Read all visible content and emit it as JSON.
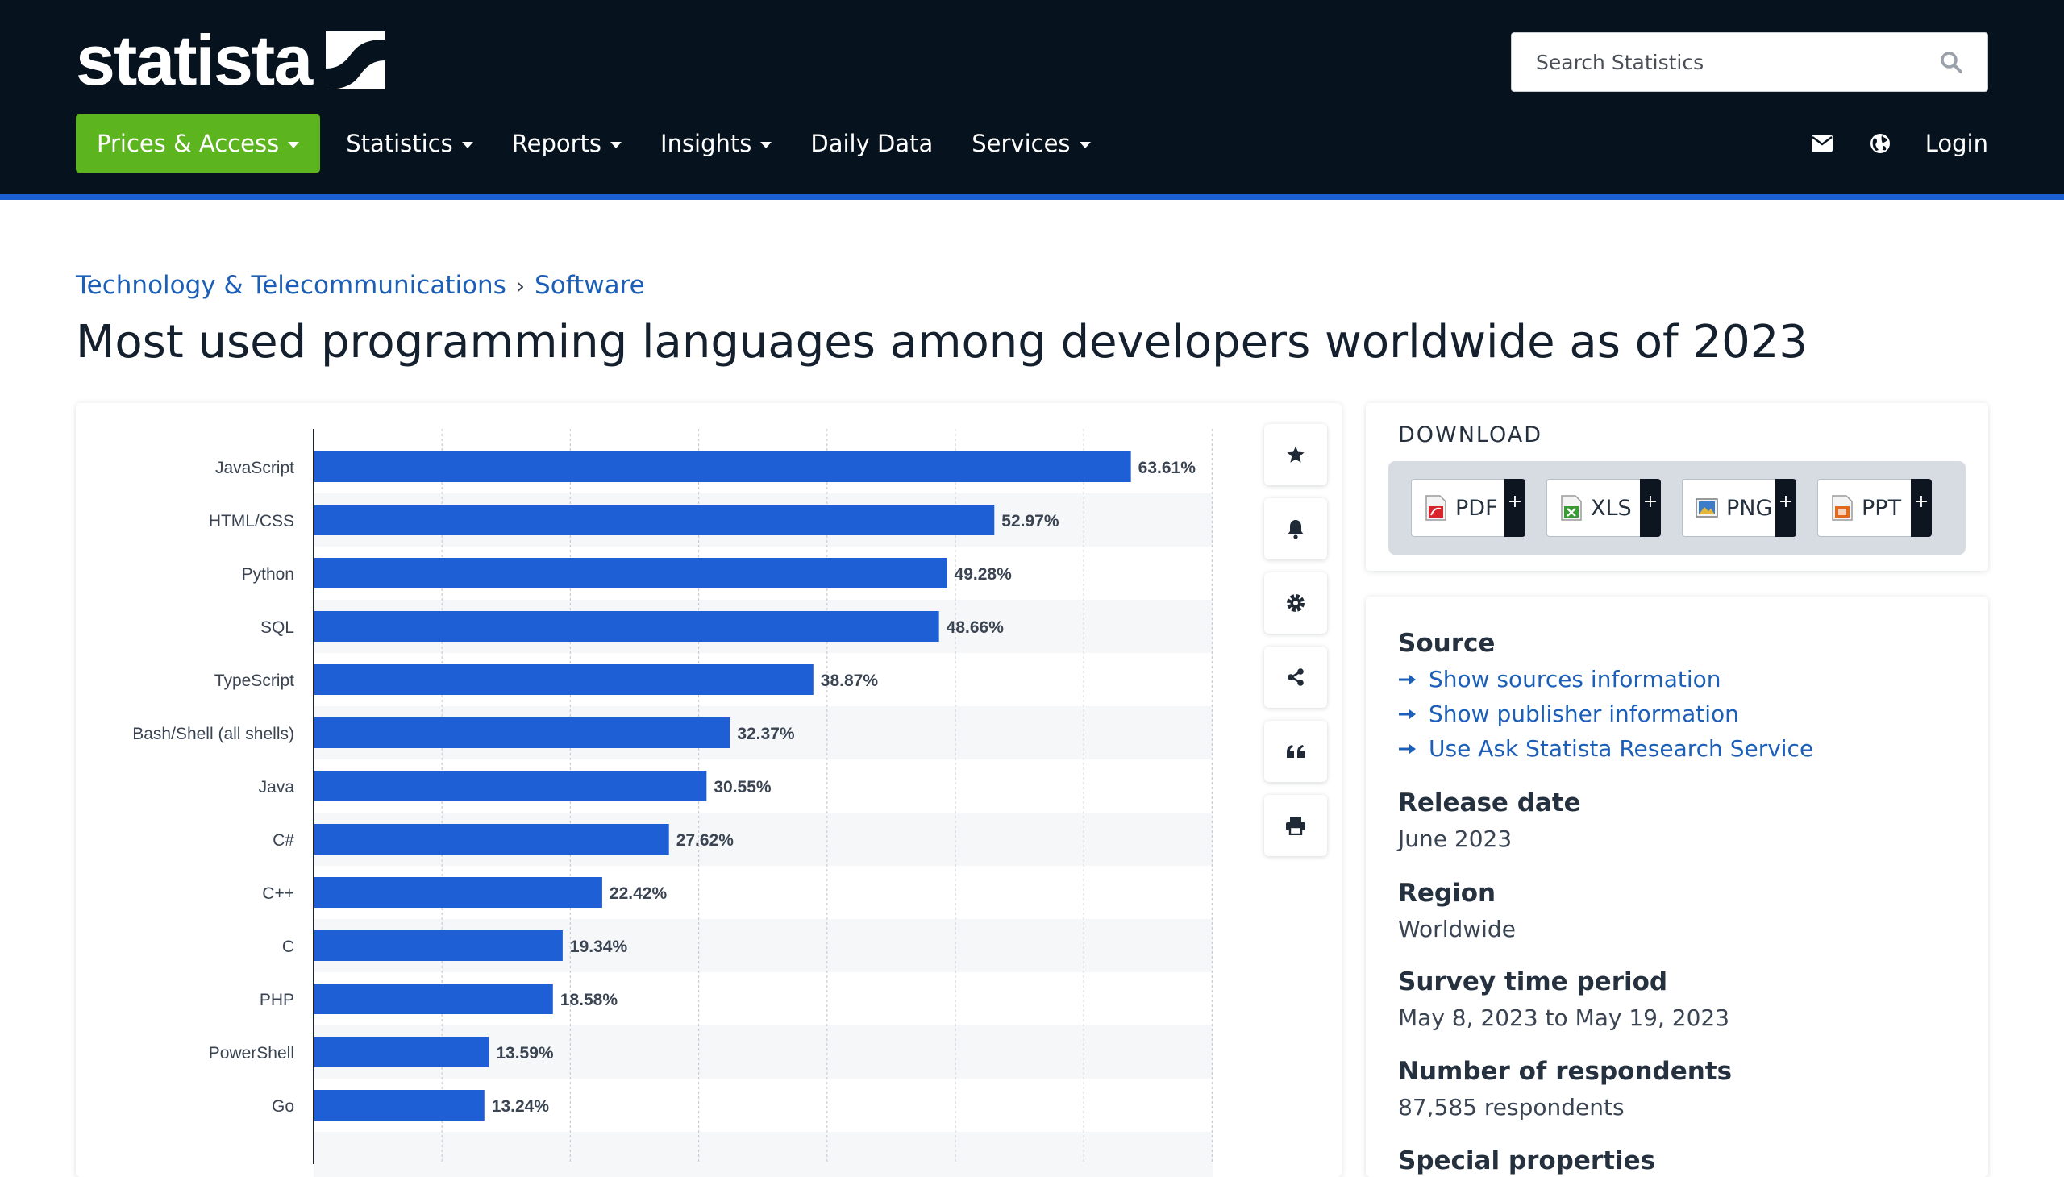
{
  "header": {
    "logo_text": "statista",
    "search_placeholder": "Search Statistics",
    "nav": [
      {
        "label": "Prices & Access"
      },
      {
        "label": "Statistics"
      },
      {
        "label": "Reports"
      },
      {
        "label": "Insights"
      },
      {
        "label": "Daily Data"
      },
      {
        "label": "Services"
      }
    ],
    "login_label": "Login",
    "colors": {
      "header_bg": "#06121e",
      "accent_green": "#5cb41e",
      "stripe_blue": "#1c5fd1"
    }
  },
  "breadcrumb": [
    "Technology & Telecommunications",
    "Software"
  ],
  "breadcrumb_separator": "›",
  "page_title": "Most used programming languages among developers worldwide as of 2023",
  "chart_data": {
    "type": "bar",
    "orientation": "horizontal",
    "categories": [
      "JavaScript",
      "HTML/CSS",
      "Python",
      "SQL",
      "TypeScript",
      "Bash/Shell (all shells)",
      "Java",
      "C#",
      "C++",
      "C",
      "PHP",
      "PowerShell",
      "Go"
    ],
    "values": [
      63.61,
      52.97,
      49.28,
      48.66,
      38.87,
      32.37,
      30.55,
      27.62,
      22.42,
      19.34,
      18.58,
      13.59,
      13.24
    ],
    "value_labels": [
      "63.61%",
      "52.97%",
      "49.28%",
      "48.66%",
      "38.87%",
      "32.37%",
      "30.55%",
      "27.62%",
      "22.42%",
      "19.34%",
      "18.58%",
      "13.59%",
      "13.24%"
    ],
    "xlim": [
      0,
      70
    ],
    "grid": true,
    "bar_color": "#1f5fd6",
    "title": "",
    "xlabel": "",
    "ylabel": ""
  },
  "tools": [
    {
      "icon": "star-icon"
    },
    {
      "icon": "bell-icon"
    },
    {
      "icon": "gear-icon"
    },
    {
      "icon": "share-icon"
    },
    {
      "icon": "quote-icon"
    },
    {
      "icon": "print-icon"
    }
  ],
  "download": {
    "title": "DOWNLOAD",
    "formats": [
      {
        "label": "PDF",
        "icon": "pdf-file-icon",
        "color": "#d8232a"
      },
      {
        "label": "XLS",
        "icon": "xls-file-icon",
        "color": "#3a9b35"
      },
      {
        "label": "PNG",
        "icon": "png-file-icon",
        "color": "#3d7cc9"
      },
      {
        "label": "PPT",
        "icon": "ppt-file-icon",
        "color": "#e0691c"
      }
    ],
    "plus": "+"
  },
  "info": {
    "source_heading": "Source",
    "links": [
      "Show sources information",
      "Show publisher information",
      "Use Ask Statista Research Service"
    ],
    "release_heading": "Release date",
    "release_value": "June 2023",
    "region_heading": "Region",
    "region_value": "Worldwide",
    "survey_heading": "Survey time period",
    "survey_value": "May 8, 2023 to May 19, 2023",
    "respondents_heading": "Number of respondents",
    "respondents_value": "87,585 respondents",
    "special_heading": "Special properties"
  }
}
